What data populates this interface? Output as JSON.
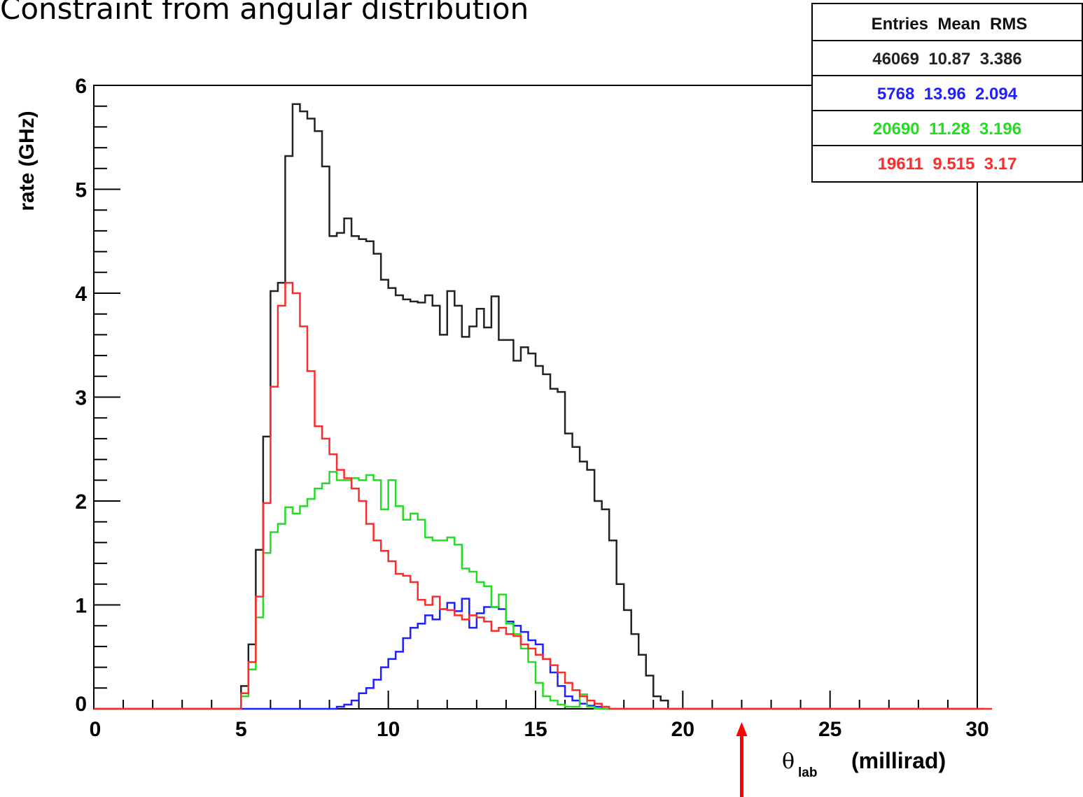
{
  "slide_title": "Constraint from angular distribution",
  "chart_data": {
    "type": "step-histogram",
    "ylabel": "rate   (GHz)",
    "xlabel_symbol": "θ",
    "xlabel_sub": "lab",
    "xlabel_unit": "(millirad)",
    "xlim": [
      0,
      30
    ],
    "ylim": [
      0,
      6
    ],
    "x_ticks": [
      "0",
      "5",
      "10",
      "15",
      "20",
      "25",
      "30"
    ],
    "y_ticks": [
      "0",
      "1",
      "2",
      "3",
      "4",
      "5",
      "6"
    ],
    "bin_width": 0.25,
    "bin_start": 0,
    "stats_box": {
      "header": "Entries  Mean  RMS",
      "rows": [
        {
          "text": "46069  10.87  3.386",
          "color": "#222222"
        },
        {
          "text": "5768  13.96  2.094",
          "color": "#1f1fff"
        },
        {
          "text": "20690  11.28  3.196",
          "color": "#22dd22"
        },
        {
          "text": "19611  9.515  3.17",
          "color": "#ff2a2a"
        }
      ]
    },
    "marker": {
      "x": 22,
      "color": "#ff0000"
    },
    "series": [
      {
        "color": "#222222",
        "values": [
          0,
          0,
          0,
          0,
          0,
          0,
          0,
          0,
          0,
          0,
          0,
          0,
          0,
          0,
          0,
          0,
          0,
          0,
          0,
          0,
          0.22,
          0.62,
          1.53,
          2.62,
          4.02,
          4.1,
          5.32,
          5.82,
          5.75,
          5.68,
          5.56,
          5.22,
          4.55,
          4.58,
          4.72,
          4.55,
          4.52,
          4.5,
          4.38,
          4.13,
          4.05,
          3.98,
          3.94,
          3.92,
          3.91,
          3.98,
          3.88,
          3.6,
          4.02,
          3.88,
          3.58,
          3.68,
          3.85,
          3.67,
          3.97,
          3.55,
          3.55,
          3.35,
          3.48,
          3.42,
          3.3,
          3.22,
          3.08,
          3.05,
          2.65,
          2.52,
          2.38,
          2.3,
          2.0,
          1.92,
          1.62,
          1.2,
          0.95,
          0.72,
          0.52,
          0.32,
          0.12,
          0.08,
          0,
          0,
          0,
          0,
          0,
          0,
          0,
          0,
          0,
          0,
          0,
          0,
          0,
          0,
          0,
          0,
          0,
          0,
          0,
          0,
          0,
          0,
          0,
          0,
          0,
          0,
          0,
          0,
          0,
          0,
          0,
          0,
          0,
          0,
          0,
          0,
          0,
          0,
          0,
          0,
          0,
          0
        ]
      },
      {
        "color": "#1f1fff",
        "values": [
          0,
          0,
          0,
          0,
          0,
          0,
          0,
          0,
          0,
          0,
          0,
          0,
          0,
          0,
          0,
          0,
          0,
          0,
          0,
          0,
          0,
          0,
          0,
          0,
          0,
          0,
          0,
          0,
          0,
          0,
          0,
          0,
          0,
          0.02,
          0.04,
          0.08,
          0.15,
          0.2,
          0.28,
          0.4,
          0.48,
          0.55,
          0.68,
          0.78,
          0.82,
          0.9,
          0.86,
          0.96,
          1.02,
          0.94,
          1.06,
          0.78,
          0.92,
          0.98,
          0.98,
          0.96,
          0.84,
          0.8,
          0.74,
          0.66,
          0.62,
          0.48,
          0.35,
          0.22,
          0.12,
          0.08,
          0.05,
          0.03,
          0.02,
          0,
          0,
          0,
          0,
          0,
          0,
          0,
          0,
          0,
          0,
          0,
          0,
          0,
          0,
          0,
          0,
          0,
          0,
          0,
          0,
          0,
          0,
          0,
          0,
          0,
          0,
          0,
          0,
          0,
          0,
          0,
          0,
          0,
          0,
          0,
          0,
          0,
          0,
          0,
          0,
          0,
          0,
          0,
          0,
          0,
          0,
          0,
          0,
          0,
          0,
          0,
          0
        ]
      },
      {
        "color": "#22dd22",
        "values": [
          0,
          0,
          0,
          0,
          0,
          0,
          0,
          0,
          0,
          0,
          0,
          0,
          0,
          0,
          0,
          0,
          0,
          0,
          0,
          0,
          0.12,
          0.38,
          0.88,
          1.5,
          1.7,
          1.78,
          1.94,
          1.88,
          1.95,
          2.02,
          2.12,
          2.17,
          2.28,
          2.2,
          2.2,
          2.22,
          2.2,
          2.25,
          2.2,
          1.92,
          2.2,
          1.95,
          1.82,
          1.88,
          1.82,
          1.65,
          1.62,
          1.62,
          1.65,
          1.58,
          1.35,
          1.32,
          1.22,
          1.18,
          0.98,
          1.1,
          0.82,
          0.72,
          0.58,
          0.45,
          0.25,
          0.12,
          0.08,
          0.04,
          0.02,
          0.02,
          0.14,
          0.02,
          0,
          0,
          0,
          0,
          0,
          0,
          0,
          0,
          0,
          0,
          0,
          0,
          0,
          0,
          0,
          0,
          0,
          0,
          0,
          0,
          0,
          0,
          0,
          0,
          0,
          0,
          0,
          0,
          0,
          0,
          0,
          0,
          0,
          0,
          0,
          0,
          0,
          0,
          0,
          0,
          0,
          0,
          0,
          0,
          0,
          0,
          0,
          0,
          0,
          0,
          0
        ]
      },
      {
        "color": "#ff2a2a",
        "values": [
          0,
          0,
          0,
          0,
          0,
          0,
          0,
          0,
          0,
          0,
          0,
          0,
          0,
          0,
          0,
          0,
          0,
          0,
          0,
          0,
          0.15,
          0.45,
          1.08,
          1.98,
          3.1,
          3.88,
          4.1,
          4.0,
          3.68,
          3.25,
          2.72,
          2.6,
          2.45,
          2.3,
          2.22,
          2.12,
          2.0,
          1.78,
          1.62,
          1.52,
          1.42,
          1.3,
          1.28,
          1.22,
          1.05,
          1.0,
          1.08,
          0.96,
          0.95,
          0.9,
          0.86,
          0.9,
          0.88,
          0.84,
          0.75,
          0.78,
          0.72,
          0.7,
          0.62,
          0.58,
          0.52,
          0.48,
          0.42,
          0.35,
          0.25,
          0.18,
          0.12,
          0.08,
          0.05,
          0.02,
          0,
          0,
          0,
          0,
          0,
          0,
          0,
          0,
          0,
          0,
          0,
          0,
          0,
          0,
          0,
          0,
          0,
          0,
          0,
          0,
          0,
          0,
          0,
          0,
          0,
          0,
          0,
          0,
          0,
          0,
          0,
          0,
          0,
          0,
          0,
          0,
          0,
          0,
          0,
          0,
          0,
          0,
          0,
          0,
          0,
          0,
          0,
          0,
          0,
          0,
          0,
          0
        ]
      }
    ]
  }
}
